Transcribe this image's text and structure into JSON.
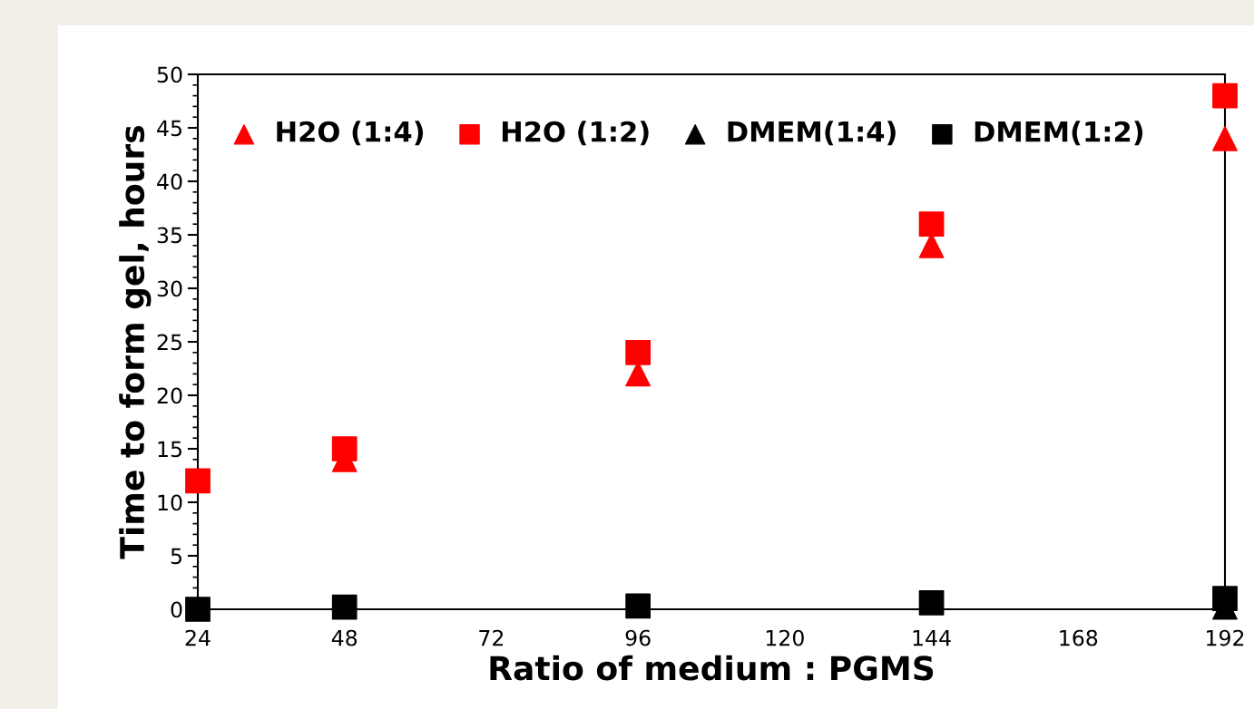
{
  "chart_data": {
    "type": "scatter",
    "xlabel": "Ratio of medium : PGMS",
    "ylabel": "Time to form gel, hours",
    "x": [
      24,
      48,
      96,
      144,
      192
    ],
    "xlim": [
      24,
      192
    ],
    "xticks": [
      24,
      48,
      72,
      96,
      120,
      144,
      168,
      192
    ],
    "ylim": [
      0,
      50
    ],
    "yticks": [
      0,
      5,
      10,
      15,
      20,
      25,
      30,
      35,
      40,
      45,
      50
    ],
    "grid": false,
    "legend": "top",
    "series": [
      {
        "name": "H2O (1:4)",
        "color": "#ff0000",
        "marker": "triangle",
        "values": [
          null,
          14,
          22,
          34,
          44
        ]
      },
      {
        "name": "H2O (1:2)",
        "color": "#ff0000",
        "marker": "square",
        "values": [
          12,
          15,
          24,
          36,
          48
        ]
      },
      {
        "name": "DMEM(1:4)",
        "color": "#000000",
        "marker": "triangle",
        "values": [
          null,
          null,
          null,
          null,
          0.2
        ]
      },
      {
        "name": "DMEM(1:2)",
        "color": "#000000",
        "marker": "square",
        "values": [
          0,
          0.2,
          0.3,
          0.6,
          1
        ]
      }
    ]
  }
}
